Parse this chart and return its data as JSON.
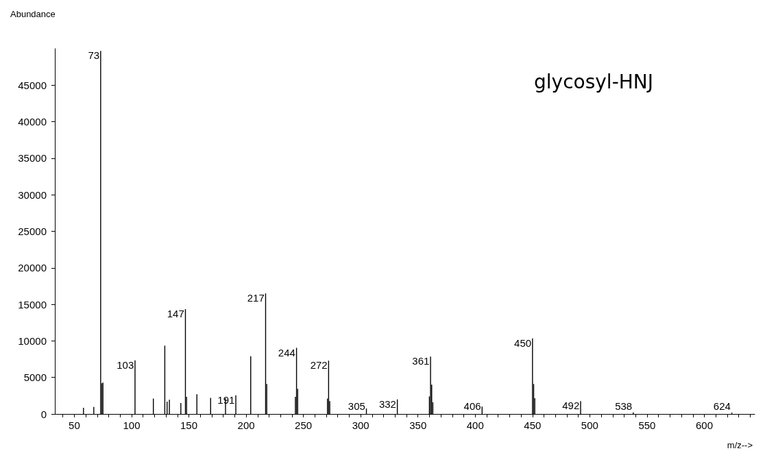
{
  "chart_data": {
    "type": "bar",
    "title": "glycosyl-HNJ",
    "xlabel": "m/z-->",
    "ylabel": "Abundance",
    "x": [
      58,
      67,
      73,
      74,
      75,
      103,
      119,
      129,
      131,
      133,
      143,
      147,
      148,
      157,
      169,
      182,
      191,
      204,
      217,
      218,
      243,
      244,
      245,
      271,
      272,
      273,
      305,
      332,
      360,
      361,
      362,
      363,
      406,
      450,
      451,
      452,
      492,
      538,
      624
    ],
    "values": [
      850,
      950,
      49700,
      4200,
      4300,
      7350,
      2100,
      9350,
      1700,
      1950,
      1500,
      14350,
      2350,
      2700,
      2200,
      2150,
      2550,
      7900,
      16500,
      4100,
      2350,
      9050,
      3450,
      2100,
      7300,
      1750,
      750,
      2000,
      2400,
      7850,
      4000,
      1600,
      1000,
      10350,
      4100,
      2150,
      1750,
      200,
      200
    ],
    "color": "#000000",
    "annotations": [
      {
        "text": "73",
        "x": 73,
        "y": 49700
      },
      {
        "text": "103",
        "x": 103,
        "y": 7350
      },
      {
        "text": "147",
        "x": 147,
        "y": 14350
      },
      {
        "text": "191",
        "x": 191,
        "y": 2550
      },
      {
        "text": "217",
        "x": 217,
        "y": 16500
      },
      {
        "text": "244",
        "x": 244,
        "y": 9050
      },
      {
        "text": "272",
        "x": 272,
        "y": 7300
      },
      {
        "text": "305",
        "x": 305,
        "y": 750
      },
      {
        "text": "332",
        "x": 332,
        "y": 2000
      },
      {
        "text": "361",
        "x": 361,
        "y": 7850
      },
      {
        "text": "406",
        "x": 406,
        "y": 1000
      },
      {
        "text": "450",
        "x": 450,
        "y": 10350
      },
      {
        "text": "492",
        "x": 492,
        "y": 1750
      },
      {
        "text": "538",
        "x": 538,
        "y": 200
      },
      {
        "text": "624",
        "x": 624,
        "y": 200
      }
    ],
    "xlim": [
      33,
      644
    ],
    "xticks": [
      {
        "value": 40,
        "label": null
      },
      50,
      {
        "value": 60,
        "label": null
      },
      {
        "value": 70,
        "label": null
      },
      {
        "value": 80,
        "label": null
      },
      {
        "value": 90,
        "label": null
      },
      100,
      {
        "value": 110,
        "label": null
      },
      {
        "value": 120,
        "label": null
      },
      {
        "value": 130,
        "label": null
      },
      {
        "value": 140,
        "label": null
      },
      150,
      {
        "value": 160,
        "label": null
      },
      {
        "value": 170,
        "label": null
      },
      {
        "value": 180,
        "label": null
      },
      {
        "value": 190,
        "label": null
      },
      200,
      {
        "value": 210,
        "label": null
      },
      {
        "value": 220,
        "label": null
      },
      {
        "value": 230,
        "label": null
      },
      {
        "value": 240,
        "label": null
      },
      250,
      {
        "value": 260,
        "label": null
      },
      {
        "value": 270,
        "label": null
      },
      {
        "value": 280,
        "label": null
      },
      {
        "value": 290,
        "label": null
      },
      300,
      {
        "value": 310,
        "label": null
      },
      {
        "value": 320,
        "label": null
      },
      {
        "value": 330,
        "label": null
      },
      {
        "value": 340,
        "label": null
      },
      350,
      {
        "value": 360,
        "label": null
      },
      {
        "value": 370,
        "label": null
      },
      {
        "value": 380,
        "label": null
      },
      {
        "value": 390,
        "label": null
      },
      400,
      {
        "value": 410,
        "label": null
      },
      {
        "value": 420,
        "label": null
      },
      {
        "value": 430,
        "label": null
      },
      {
        "value": 440,
        "label": null
      },
      450,
      {
        "value": 460,
        "label": null
      },
      {
        "value": 470,
        "label": null
      },
      {
        "value": 480,
        "label": null
      },
      {
        "value": 490,
        "label": null
      },
      500,
      {
        "value": 510,
        "label": null
      },
      {
        "value": 520,
        "label": null
      },
      {
        "value": 530,
        "label": null
      },
      {
        "value": 540,
        "label": null
      },
      550,
      {
        "value": 560,
        "label": null
      },
      {
        "value": 570,
        "label": null
      },
      {
        "value": 580,
        "label": null
      },
      {
        "value": 590,
        "label": null
      },
      600,
      {
        "value": 610,
        "label": null
      },
      {
        "value": 620,
        "label": null
      },
      {
        "value": 630,
        "label": null
      },
      {
        "value": 640,
        "label": null
      }
    ],
    "ylim": [
      0,
      50000
    ],
    "yticks": [
      0,
      5000,
      10000,
      15000,
      20000,
      25000,
      30000,
      35000,
      40000,
      45000
    ],
    "grid": false
  }
}
